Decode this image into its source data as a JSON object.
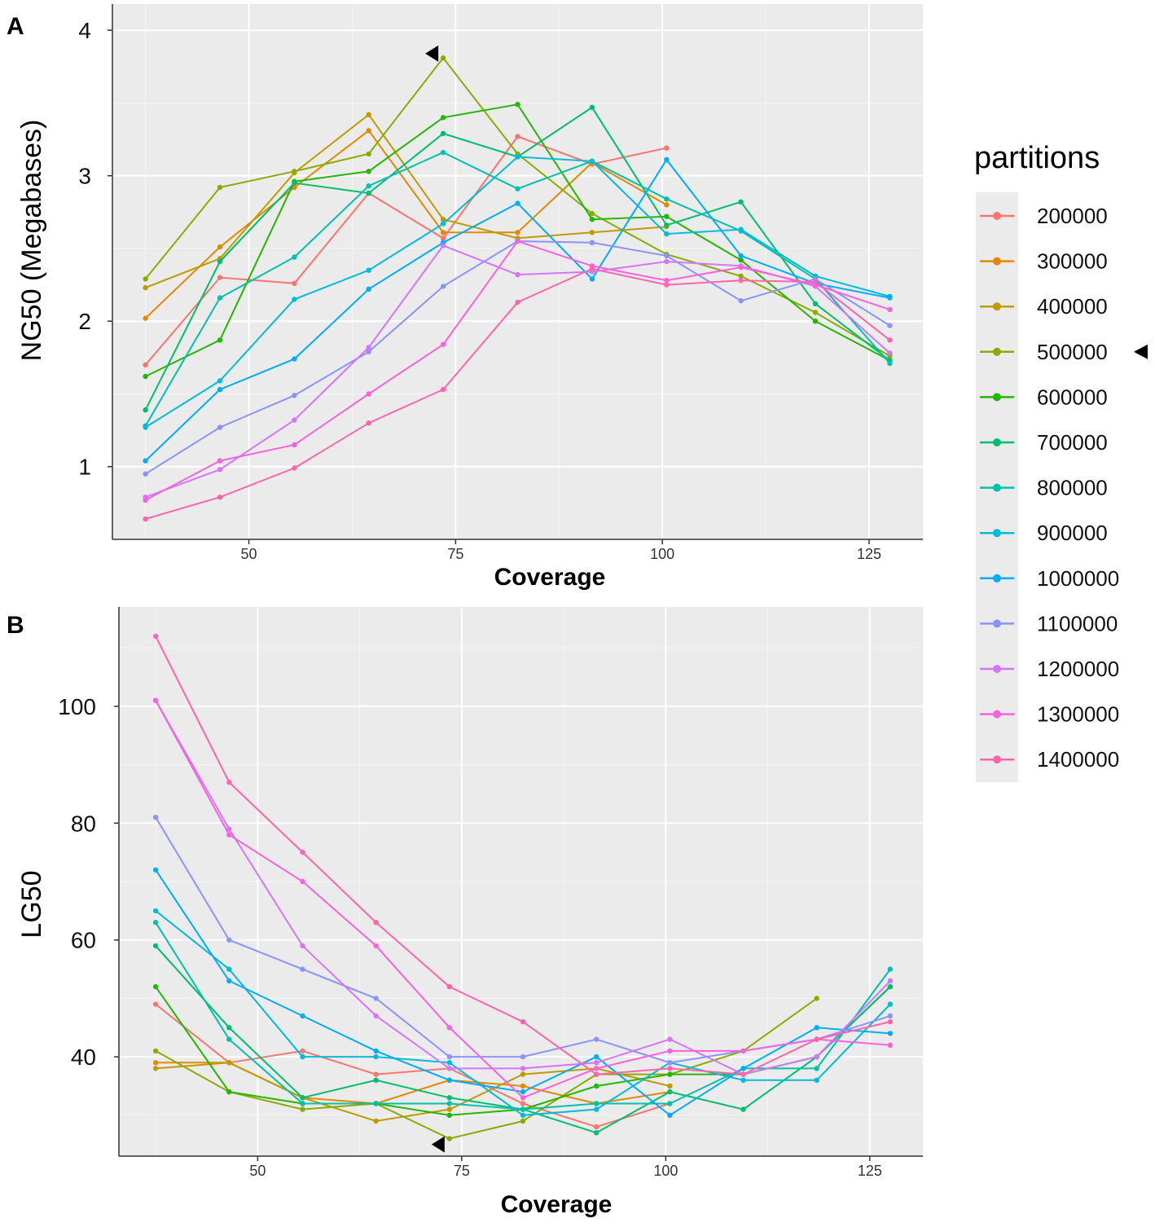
{
  "figure": {
    "legend": {
      "title": "partitions",
      "entries": [
        {
          "label": "200000",
          "color": "#F8766D"
        },
        {
          "label": "300000",
          "color": "#E18A00"
        },
        {
          "label": "400000",
          "color": "#BE9C00"
        },
        {
          "label": "500000",
          "color": "#8CAB00"
        },
        {
          "label": "600000",
          "color": "#24B700"
        },
        {
          "label": "700000",
          "color": "#00BE70"
        },
        {
          "label": "800000",
          "color": "#00C1AB"
        },
        {
          "label": "900000",
          "color": "#00BBDA"
        },
        {
          "label": "1000000",
          "color": "#00ACFC"
        },
        {
          "label": "1100000",
          "color": "#8B93FF"
        },
        {
          "label": "1200000",
          "color": "#D575FE"
        },
        {
          "label": "1300000",
          "color": "#F962DD"
        },
        {
          "label": "1400000",
          "color": "#FF65AC"
        }
      ],
      "marker": "500000"
    }
  },
  "chart_data": [
    {
      "panel": "A",
      "type": "line",
      "title": "",
      "xlabel": "Coverage",
      "ylabel": "NG50 (Megabases)",
      "xlim": [
        33.5,
        131.5
      ],
      "ylim": [
        0.5,
        4.18
      ],
      "xticks": [
        50,
        75,
        100,
        125
      ],
      "yticks": [
        1,
        2,
        3,
        4
      ],
      "x": [
        37.5,
        46.5,
        55.5,
        64.5,
        73.5,
        82.5,
        91.5,
        100.5,
        109.5,
        118.5,
        127.5
      ],
      "marker": {
        "x": 73.5,
        "y": 3.84
      },
      "series": [
        {
          "name": "200000",
          "values": [
            1.7,
            2.3,
            2.26,
            2.88,
            2.57,
            3.27,
            3.08,
            3.19,
            null,
            null,
            null
          ]
        },
        {
          "name": "300000",
          "values": [
            2.02,
            2.51,
            2.92,
            3.31,
            2.61,
            2.61,
            3.09,
            2.8,
            null,
            null,
            null
          ]
        },
        {
          "name": "400000",
          "values": [
            2.23,
            2.43,
            3.02,
            3.42,
            2.7,
            2.57,
            2.61,
            2.65,
            null,
            null,
            null
          ]
        },
        {
          "name": "500000",
          "values": [
            2.29,
            2.92,
            3.03,
            3.15,
            3.81,
            3.15,
            2.74,
            2.46,
            2.31,
            2.06,
            1.76
          ]
        },
        {
          "name": "600000",
          "values": [
            1.62,
            1.87,
            2.96,
            3.03,
            3.4,
            3.49,
            2.7,
            2.72,
            2.42,
            2.0,
            1.73
          ]
        },
        {
          "name": "700000",
          "values": [
            1.39,
            2.41,
            2.95,
            2.88,
            3.29,
            3.13,
            3.47,
            2.66,
            2.82,
            2.12,
            1.73
          ]
        },
        {
          "name": "800000",
          "values": [
            1.28,
            2.16,
            2.44,
            2.93,
            3.16,
            2.91,
            3.1,
            2.84,
            2.62,
            2.29,
            1.71
          ]
        },
        {
          "name": "900000",
          "values": [
            1.27,
            1.59,
            2.15,
            2.35,
            2.67,
            3.13,
            3.1,
            2.6,
            2.63,
            2.31,
            2.17
          ]
        },
        {
          "name": "1000000",
          "values": [
            1.04,
            1.53,
            1.74,
            2.22,
            2.54,
            2.81,
            2.29,
            3.11,
            2.45,
            2.26,
            2.16
          ]
        },
        {
          "name": "1100000",
          "values": [
            0.95,
            1.27,
            1.49,
            1.79,
            2.24,
            2.55,
            2.54,
            2.45,
            2.14,
            2.29,
            1.97
          ]
        },
        {
          "name": "1200000",
          "values": [
            0.79,
            0.98,
            1.32,
            1.82,
            2.52,
            2.32,
            2.34,
            2.41,
            2.38,
            2.24,
            1.78
          ]
        },
        {
          "name": "1300000",
          "values": [
            0.77,
            1.04,
            1.15,
            1.5,
            1.84,
            2.55,
            2.38,
            2.28,
            2.37,
            2.25,
            2.08
          ]
        },
        {
          "name": "1400000",
          "values": [
            0.64,
            0.79,
            0.99,
            1.3,
            1.53,
            2.13,
            2.36,
            2.25,
            2.28,
            2.27,
            1.87
          ]
        }
      ]
    },
    {
      "panel": "B",
      "type": "line",
      "title": "",
      "xlabel": "Coverage",
      "ylabel": "LG50",
      "xlim": [
        33,
        131.5
      ],
      "ylim": [
        23,
        117
      ],
      "xticks": [
        50,
        75,
        100,
        125
      ],
      "yticks": [
        40,
        60,
        80,
        100
      ],
      "x": [
        37.5,
        46.5,
        55.5,
        64.5,
        73.5,
        82.5,
        91.5,
        100.5,
        109.5,
        118.5,
        127.5
      ],
      "marker": {
        "x": 73.5,
        "y": 25
      },
      "series": [
        {
          "name": "200000",
          "values": [
            49,
            39,
            41,
            37,
            38,
            32,
            28,
            32,
            null,
            null,
            null
          ]
        },
        {
          "name": "300000",
          "values": [
            39,
            39,
            33,
            32,
            36,
            35,
            32,
            34,
            null,
            null,
            null
          ]
        },
        {
          "name": "400000",
          "values": [
            38,
            39,
            33,
            29,
            31,
            37,
            38,
            35,
            null,
            null,
            null
          ]
        },
        {
          "name": "500000",
          "values": [
            41,
            34,
            31,
            32,
            26,
            29,
            37,
            37,
            41,
            50,
            null
          ]
        },
        {
          "name": "600000",
          "values": [
            52,
            34,
            32,
            32,
            30,
            31,
            35,
            37,
            37,
            40,
            52
          ]
        },
        {
          "name": "700000",
          "values": [
            59,
            45,
            33,
            36,
            33,
            31,
            27,
            34,
            31,
            40,
            52
          ]
        },
        {
          "name": "800000",
          "values": [
            63,
            43,
            32,
            32,
            32,
            31,
            32,
            32,
            38,
            38,
            55
          ]
        },
        {
          "name": "900000",
          "values": [
            65,
            55,
            40,
            40,
            39,
            30,
            31,
            39,
            36,
            36,
            49
          ]
        },
        {
          "name": "1000000",
          "values": [
            72,
            53,
            47,
            41,
            36,
            34,
            40,
            30,
            38,
            45,
            44
          ]
        },
        {
          "name": "1100000",
          "values": [
            81,
            60,
            55,
            50,
            40,
            40,
            43,
            39,
            41,
            43,
            47
          ]
        },
        {
          "name": "1200000",
          "values": [
            101,
            79,
            59,
            47,
            38,
            38,
            39,
            43,
            37,
            40,
            53
          ]
        },
        {
          "name": "1300000",
          "values": [
            101,
            78,
            70,
            59,
            45,
            33,
            38,
            41,
            41,
            43,
            42
          ]
        },
        {
          "name": "1400000",
          "values": [
            112,
            87,
            75,
            63,
            52,
            46,
            37,
            38,
            37,
            43,
            46
          ]
        }
      ]
    }
  ]
}
